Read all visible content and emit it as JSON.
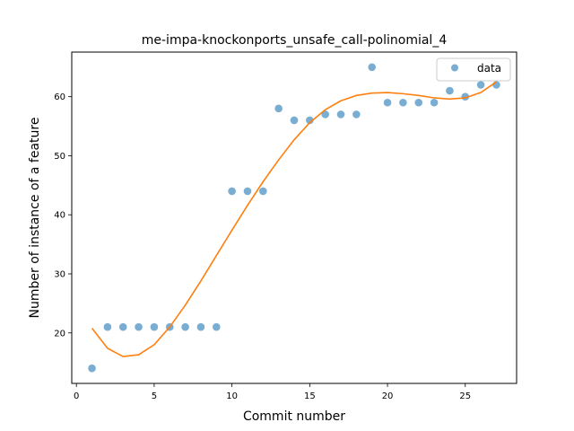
{
  "chart_data": {
    "type": "scatter",
    "title": "me-impa-knockonports_unsafe_call-polinomial_4",
    "xlabel": "Commit number",
    "ylabel": "Number of instance of a feature",
    "xlim": [
      -0.3,
      28.3
    ],
    "ylim": [
      11.45,
      67.55
    ],
    "xticks": [
      0,
      5,
      10,
      15,
      20,
      25
    ],
    "yticks": [
      20,
      30,
      40,
      50,
      60
    ],
    "grid": false,
    "legend": {
      "position": "top-right",
      "entries": [
        "data"
      ]
    },
    "colors": {
      "data": "#1f77b4",
      "fit": "#ff7f0e"
    },
    "series": [
      {
        "name": "data",
        "kind": "scatter",
        "x": [
          1,
          2,
          3,
          4,
          5,
          6,
          7,
          8,
          9,
          10,
          11,
          12,
          13,
          14,
          15,
          16,
          17,
          18,
          19,
          20,
          21,
          22,
          23,
          24,
          25,
          26,
          27
        ],
        "y": [
          14,
          21,
          21,
          21,
          21,
          21,
          21,
          21,
          21,
          44,
          44,
          44,
          58,
          56,
          56,
          57,
          57,
          57,
          65,
          59,
          59,
          59,
          59,
          61,
          60,
          62,
          62
        ]
      },
      {
        "kind": "line",
        "x": [
          1,
          2,
          3,
          4,
          5,
          6,
          7,
          8,
          9,
          10,
          11,
          12,
          13,
          14,
          15,
          16,
          17,
          18,
          19,
          20,
          21,
          22,
          23,
          24,
          25,
          26,
          27
        ],
        "y": [
          20.8,
          17.4,
          16.0,
          16.3,
          18.0,
          21.0,
          24.7,
          28.8,
          33.1,
          37.4,
          41.6,
          45.6,
          49.3,
          52.7,
          55.6,
          57.8,
          59.3,
          60.2,
          60.6,
          60.7,
          60.5,
          60.2,
          59.8,
          59.6,
          59.8,
          60.7,
          62.5
        ]
      }
    ]
  }
}
